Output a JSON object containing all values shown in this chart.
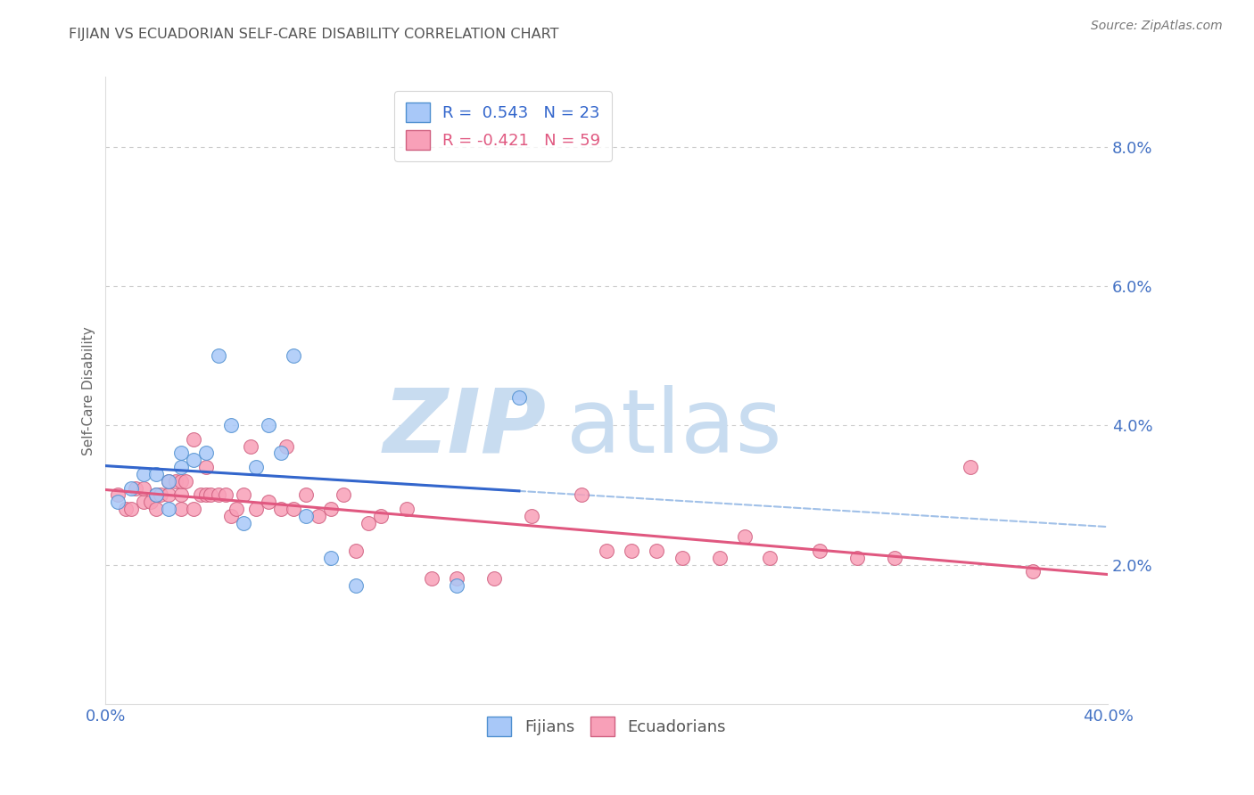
{
  "title": "FIJIAN VS ECUADORIAN SELF-CARE DISABILITY CORRELATION CHART",
  "source": "Source: ZipAtlas.com",
  "ylabel": "Self-Care Disability",
  "xlim": [
    0.0,
    0.4
  ],
  "ylim": [
    0.0,
    0.09
  ],
  "yticks": [
    0.02,
    0.04,
    0.06,
    0.08
  ],
  "ytick_labels": [
    "2.0%",
    "4.0%",
    "6.0%",
    "8.0%"
  ],
  "xticks": [
    0.0,
    0.05,
    0.1,
    0.15,
    0.2,
    0.25,
    0.3,
    0.35,
    0.4
  ],
  "fijian_fill_color": "#A8C8F8",
  "fijian_edge_color": "#5090D0",
  "ecuadorian_fill_color": "#F8A0B8",
  "ecuadorian_edge_color": "#D06080",
  "fijian_line_color": "#3366CC",
  "ecuadorian_line_color": "#E05880",
  "fijian_dash_color": "#A0C0E8",
  "legend_R_fijian": "R =  0.543",
  "legend_N_fijian": "N = 23",
  "legend_R_ecuadorian": "R = -0.421",
  "legend_N_ecuadorian": "N = 59",
  "fijian_x": [
    0.005,
    0.01,
    0.015,
    0.02,
    0.02,
    0.025,
    0.025,
    0.03,
    0.03,
    0.035,
    0.04,
    0.045,
    0.05,
    0.055,
    0.06,
    0.065,
    0.07,
    0.075,
    0.08,
    0.09,
    0.1,
    0.14,
    0.165
  ],
  "fijian_y": [
    0.029,
    0.031,
    0.033,
    0.03,
    0.033,
    0.032,
    0.028,
    0.034,
    0.036,
    0.035,
    0.036,
    0.05,
    0.04,
    0.026,
    0.034,
    0.04,
    0.036,
    0.05,
    0.027,
    0.021,
    0.017,
    0.017,
    0.044
  ],
  "ecuadorian_x": [
    0.005,
    0.008,
    0.01,
    0.012,
    0.015,
    0.015,
    0.018,
    0.02,
    0.02,
    0.022,
    0.025,
    0.025,
    0.028,
    0.03,
    0.03,
    0.03,
    0.032,
    0.035,
    0.035,
    0.038,
    0.04,
    0.04,
    0.042,
    0.045,
    0.048,
    0.05,
    0.052,
    0.055,
    0.058,
    0.06,
    0.065,
    0.07,
    0.072,
    0.075,
    0.08,
    0.085,
    0.09,
    0.095,
    0.1,
    0.105,
    0.11,
    0.12,
    0.13,
    0.14,
    0.155,
    0.17,
    0.19,
    0.2,
    0.21,
    0.22,
    0.23,
    0.245,
    0.255,
    0.265,
    0.285,
    0.3,
    0.315,
    0.345,
    0.37
  ],
  "ecuadorian_y": [
    0.03,
    0.028,
    0.028,
    0.031,
    0.029,
    0.031,
    0.029,
    0.028,
    0.03,
    0.03,
    0.03,
    0.032,
    0.032,
    0.028,
    0.03,
    0.032,
    0.032,
    0.028,
    0.038,
    0.03,
    0.03,
    0.034,
    0.03,
    0.03,
    0.03,
    0.027,
    0.028,
    0.03,
    0.037,
    0.028,
    0.029,
    0.028,
    0.037,
    0.028,
    0.03,
    0.027,
    0.028,
    0.03,
    0.022,
    0.026,
    0.027,
    0.028,
    0.018,
    0.018,
    0.018,
    0.027,
    0.03,
    0.022,
    0.022,
    0.022,
    0.021,
    0.021,
    0.024,
    0.021,
    0.022,
    0.021,
    0.021,
    0.034,
    0.019
  ],
  "background_color": "#FFFFFF",
  "grid_color": "#CCCCCC",
  "title_color": "#555555",
  "axis_color": "#4472C4",
  "watermark_zip": "ZIP",
  "watermark_atlas": "atlas",
  "watermark_color": "#C8DCF0"
}
